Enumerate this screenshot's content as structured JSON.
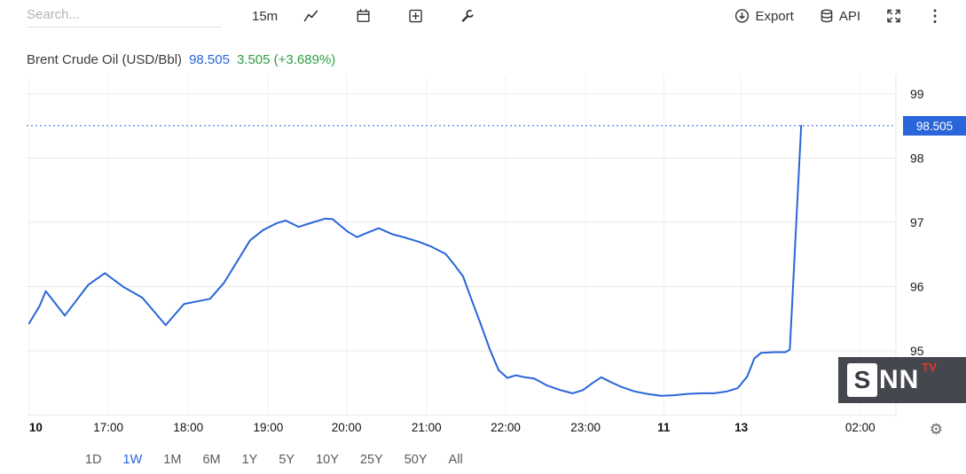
{
  "toolbar": {
    "search_placeholder": "Search...",
    "interval": "15m",
    "export_label": "Export",
    "api_label": "API"
  },
  "header": {
    "title": "Brent Crude Oil (USD/Bbl)",
    "price": "98.505",
    "change": "3.505 (+3.689%)"
  },
  "chart_data": {
    "type": "line",
    "title": "Brent Crude Oil (USD/Bbl)",
    "interval": "15m",
    "line_color": "#2a65d9",
    "grid": true,
    "legend_position": "none",
    "ylim": [
      93.98,
      99.29
    ],
    "y_ticks": [
      95,
      96,
      97,
      98,
      99
    ],
    "y_gridlines": [
      94,
      95,
      96,
      97,
      98,
      99
    ],
    "last_price": 98.505,
    "last_price_label": "98.505",
    "x_ticks": [
      {
        "label": "10",
        "pos": 0.003,
        "day": true,
        "anchor": "start"
      },
      {
        "label": "17:00",
        "pos": 0.094
      },
      {
        "label": "18:00",
        "pos": 0.186
      },
      {
        "label": "19:00",
        "pos": 0.278
      },
      {
        "label": "20:00",
        "pos": 0.368
      },
      {
        "label": "21:00",
        "pos": 0.46
      },
      {
        "label": "22:00",
        "pos": 0.551
      },
      {
        "label": "23:00",
        "pos": 0.643
      },
      {
        "label": "11",
        "pos": 0.733,
        "day": true
      },
      {
        "label": "13",
        "pos": 0.822,
        "day": true
      },
      {
        "label": "02:00",
        "pos": 0.959
      }
    ],
    "points": [
      [
        0.003,
        95.43
      ],
      [
        0.015,
        95.7
      ],
      [
        0.022,
        95.93
      ],
      [
        0.044,
        95.55
      ],
      [
        0.071,
        96.03
      ],
      [
        0.09,
        96.21
      ],
      [
        0.112,
        95.99
      ],
      [
        0.133,
        95.83
      ],
      [
        0.16,
        95.4
      ],
      [
        0.181,
        95.73
      ],
      [
        0.196,
        95.77
      ],
      [
        0.211,
        95.81
      ],
      [
        0.227,
        96.06
      ],
      [
        0.242,
        96.39
      ],
      [
        0.257,
        96.72
      ],
      [
        0.272,
        96.88
      ],
      [
        0.288,
        96.99
      ],
      [
        0.298,
        97.03
      ],
      [
        0.313,
        96.93
      ],
      [
        0.329,
        97.0
      ],
      [
        0.344,
        97.06
      ],
      [
        0.352,
        97.05
      ],
      [
        0.369,
        96.86
      ],
      [
        0.38,
        96.77
      ],
      [
        0.39,
        96.83
      ],
      [
        0.405,
        96.91
      ],
      [
        0.42,
        96.82
      ],
      [
        0.436,
        96.76
      ],
      [
        0.451,
        96.7
      ],
      [
        0.466,
        96.62
      ],
      [
        0.482,
        96.51
      ],
      [
        0.492,
        96.34
      ],
      [
        0.502,
        96.16
      ],
      [
        0.512,
        95.79
      ],
      [
        0.522,
        95.43
      ],
      [
        0.533,
        95.02
      ],
      [
        0.543,
        94.7
      ],
      [
        0.553,
        94.58
      ],
      [
        0.563,
        94.62
      ],
      [
        0.573,
        94.59
      ],
      [
        0.584,
        94.57
      ],
      [
        0.599,
        94.46
      ],
      [
        0.614,
        94.39
      ],
      [
        0.628,
        94.34
      ],
      [
        0.64,
        94.39
      ],
      [
        0.651,
        94.5
      ],
      [
        0.661,
        94.59
      ],
      [
        0.671,
        94.52
      ],
      [
        0.684,
        94.44
      ],
      [
        0.699,
        94.37
      ],
      [
        0.714,
        94.33
      ],
      [
        0.73,
        94.3
      ],
      [
        0.745,
        94.31
      ],
      [
        0.76,
        94.33
      ],
      [
        0.776,
        94.34
      ],
      [
        0.791,
        94.34
      ],
      [
        0.806,
        94.37
      ],
      [
        0.818,
        94.42
      ],
      [
        0.829,
        94.6
      ],
      [
        0.837,
        94.88
      ],
      [
        0.845,
        94.97
      ],
      [
        0.86,
        94.98
      ],
      [
        0.873,
        94.98
      ],
      [
        0.878,
        95.02
      ],
      [
        0.891,
        98.505
      ]
    ]
  },
  "timeframes": {
    "items": [
      "1D",
      "1W",
      "1M",
      "6M",
      "1Y",
      "5Y",
      "10Y",
      "25Y",
      "50Y",
      "All"
    ],
    "active": "1W"
  },
  "watermark": {
    "letter": "S",
    "rest": "NN",
    "badge": "TV"
  }
}
